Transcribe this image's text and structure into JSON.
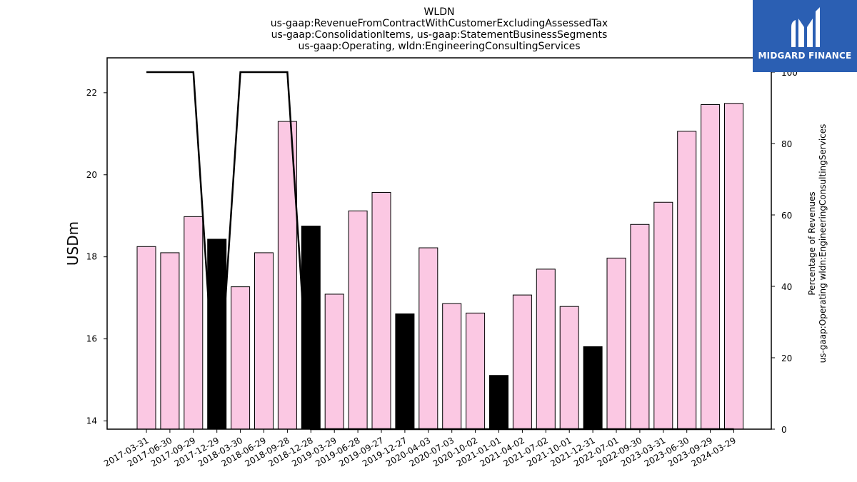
{
  "chart_data": {
    "type": "bar",
    "title_lines": [
      "WLDN",
      "us-gaap:RevenueFromContractWithCustomerExcludingAssessedTax",
      "us-gaap:ConsolidationItems, us-gaap:StatementBusinessSegments",
      "us-gaap:Operating, wldn:EngineeringConsultingServices"
    ],
    "ylabel": "USDm",
    "y2label_lines": [
      "Percentage of Revenues",
      "us-gaap:Operating wldn:EngineeringConsultingServices"
    ],
    "categories": [
      "2017-03-31",
      "2017-06-30",
      "2017-09-29",
      "2017-12-29",
      "2018-03-30",
      "2018-06-29",
      "2018-09-28",
      "2018-12-28",
      "2019-03-29",
      "2019-06-28",
      "2019-09-27",
      "2019-12-27",
      "2020-04-03",
      "2020-07-03",
      "2020-10-02",
      "2021-01-01",
      "2021-04-02",
      "2021-07-02",
      "2021-10-01",
      "2021-12-31",
      "2022-07-01",
      "2022-09-30",
      "2023-03-31",
      "2023-06-30",
      "2023-09-29",
      "2024-03-29"
    ],
    "values": [
      18.25,
      18.1,
      18.98,
      18.43,
      17.27,
      18.1,
      21.3,
      18.75,
      17.09,
      19.12,
      19.57,
      16.61,
      18.22,
      16.86,
      16.63,
      15.11,
      17.07,
      17.7,
      16.79,
      15.81,
      17.97,
      18.79,
      19.33,
      21.06,
      21.71,
      21.74
    ],
    "highlight": [
      false,
      false,
      false,
      true,
      false,
      false,
      false,
      true,
      false,
      false,
      false,
      true,
      false,
      false,
      false,
      true,
      false,
      false,
      false,
      true,
      false,
      false,
      false,
      false,
      false,
      false
    ],
    "ylim": [
      13.8,
      22.85
    ],
    "yticks": [
      14,
      16,
      18,
      20,
      22
    ],
    "y2lim": [
      0,
      104
    ],
    "y2ticks": [
      0,
      20,
      40,
      60,
      80,
      100
    ],
    "line_series": {
      "values": [
        100,
        100,
        100,
        0,
        100,
        100,
        100,
        0,
        0,
        0,
        0,
        0,
        0,
        0,
        0,
        0,
        0,
        0,
        0,
        0,
        0,
        0,
        0,
        0,
        0,
        0
      ]
    },
    "colors": {
      "bar": "#fbc8e3",
      "highlight": "#000000",
      "line": "#000000",
      "edge": "#000000"
    }
  },
  "logo": {
    "text": "MIDGARD FINANCE",
    "background": "#2b5fb3"
  }
}
